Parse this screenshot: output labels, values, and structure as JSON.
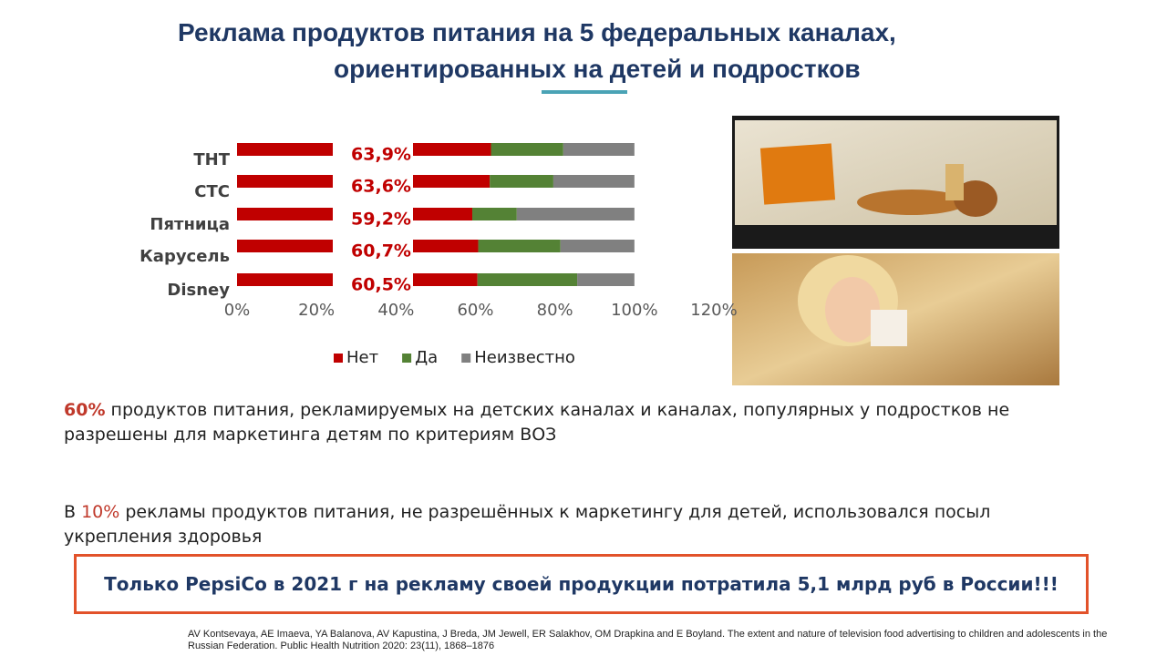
{
  "header": {
    "title_line1": "Реклама продуктов питания на 5 федеральных каналах,",
    "title_line2": "ориентированных на детей и подростков"
  },
  "chart_data": {
    "type": "stacked_barh",
    "categories": [
      "ТНТ",
      "СТС",
      "Пятница",
      "Карусель",
      "Disney"
    ],
    "series": [
      {
        "name": "Нет",
        "color": "#c00000",
        "values": [
          63.9,
          63.6,
          59.2,
          60.7,
          60.5
        ],
        "value_labels": [
          "63,9%",
          "63,6%",
          "59,2%",
          "60,7%",
          "60,5%"
        ]
      },
      {
        "name": "Да",
        "color": "#548235",
        "values": [
          18.2,
          16.0,
          11.2,
          20.7,
          25.1
        ]
      },
      {
        "name": "Неизвестно",
        "color": "#808080",
        "values": [
          17.9,
          20.4,
          29.6,
          18.6,
          14.4
        ]
      }
    ],
    "xlim": [
      0,
      120
    ],
    "xticks": [
      {
        "value": 0,
        "label": "0%"
      },
      {
        "value": 20,
        "label": "20%"
      },
      {
        "value": 40,
        "label": "40%"
      },
      {
        "value": 60,
        "label": "60%"
      },
      {
        "value": 80,
        "label": "80%"
      },
      {
        "value": 100,
        "label": "100%"
      },
      {
        "value": 120,
        "label": "120%"
      }
    ],
    "legend": "bottom"
  },
  "paragraphs": [
    {
      "highlight": "60%",
      "text": " продуктов питания, рекламируемых  на детских каналах и каналах, популярных у подростков не разрешены для маркетинга детям по критериям ВОЗ"
    },
    {
      "before": "В ",
      "highlight": "10%",
      "text": " рекламы продуктов питания, не разрешённых к маркетингу для детей, использовался посыл укрепления здоровья"
    }
  ],
  "callout": "Только PepsiCo в 2021 г на рекламу своей продукции потратила 5,1 млрд руб в России!!!",
  "citation": "AV Kontsevaya, AE Imaeva, YA Balanova, AV Kapustina, J Breda, JM Jewell, ER Salakhov, OM Drapkina and E Boyland. The extent and nature of television food advertising to children and adolescents in the Russian Federation. Public Health Nutrition 2020: 23(11), 1868–1876"
}
